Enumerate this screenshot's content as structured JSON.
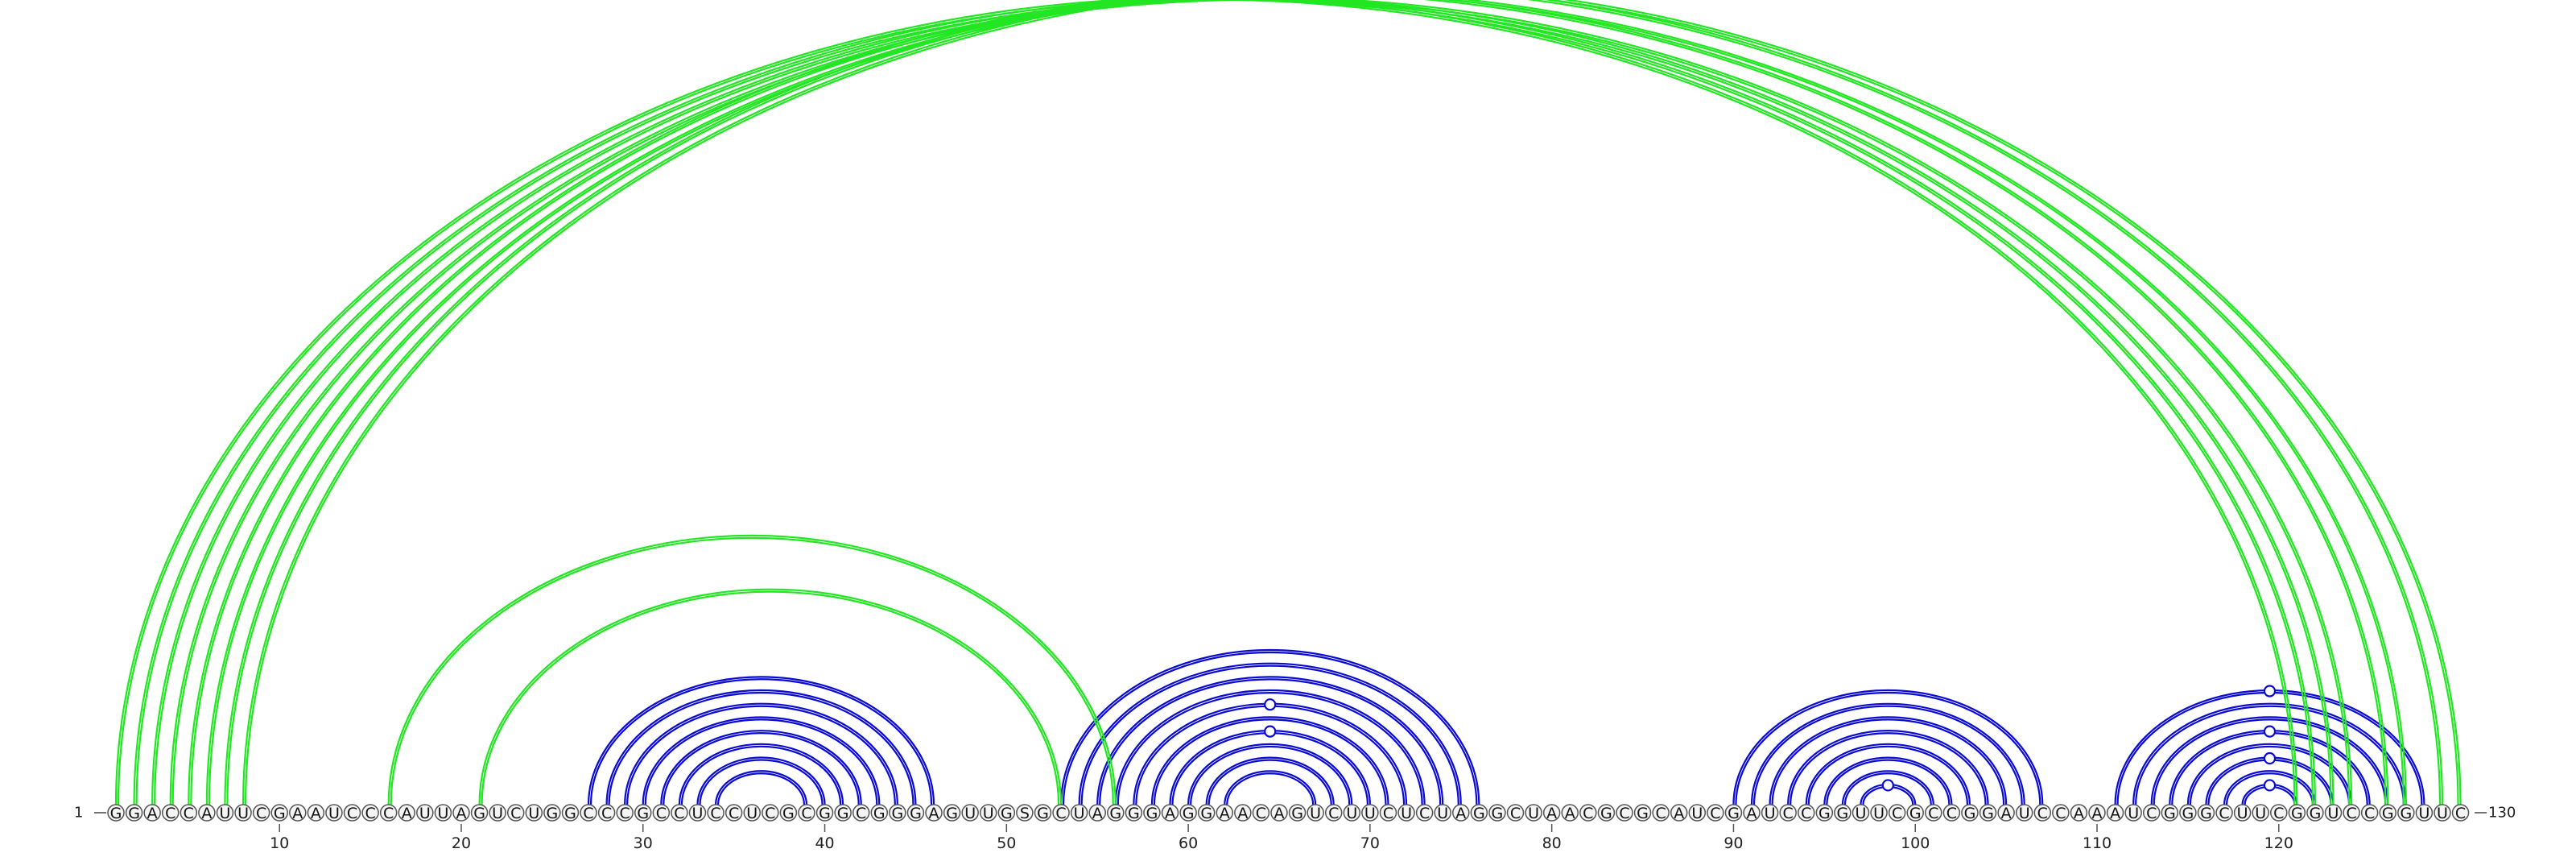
{
  "sequence": "GGACCAUUCGAAUCCCAUUAGUCUGGCCCGCCUCCUCGCGGCGGGAGUUGSGCUAGGGAGGAACAGUCUUCUCUAGGCUAACGCGCAUCGAUCCGGUUCGCCGGAUCCAAAUCGGGCUUCGGUCCGGUUC",
  "start_label": "1",
  "end_label": "130",
  "ticks": [
    {
      "pos": 10,
      "label": "10"
    },
    {
      "pos": 20,
      "label": "20"
    },
    {
      "pos": 30,
      "label": "30"
    },
    {
      "pos": 40,
      "label": "40"
    },
    {
      "pos": 50,
      "label": "50"
    },
    {
      "pos": 60,
      "label": "60"
    },
    {
      "pos": 70,
      "label": "70"
    },
    {
      "pos": 80,
      "label": "80"
    },
    {
      "pos": 90,
      "label": "90"
    },
    {
      "pos": 100,
      "label": "100"
    },
    {
      "pos": 110,
      "label": "110"
    },
    {
      "pos": 120,
      "label": "120"
    }
  ],
  "colors": {
    "helix": "#0a0ad2",
    "pseudoknot": "#22e622"
  },
  "helices": [
    {
      "kind": "helix",
      "pairs": [
        [
          27,
          46
        ],
        [
          28,
          45
        ],
        [
          29,
          44
        ],
        [
          30,
          43
        ],
        [
          31,
          42
        ],
        [
          32,
          41
        ],
        [
          33,
          40
        ],
        [
          34,
          39
        ]
      ]
    },
    {
      "kind": "helix",
      "pairs": [
        [
          53,
          76
        ],
        [
          54,
          75
        ],
        [
          55,
          74
        ],
        [
          56,
          73
        ],
        [
          57,
          72
        ],
        [
          58,
          71
        ],
        [
          59,
          70
        ],
        [
          60,
          69
        ],
        [
          61,
          68
        ],
        [
          62,
          67
        ]
      ],
      "marked": [
        [
          57,
          72
        ],
        [
          59,
          70
        ]
      ]
    },
    {
      "kind": "helix",
      "pairs": [
        [
          90,
          107
        ],
        [
          91,
          106
        ],
        [
          92,
          105
        ],
        [
          93,
          104
        ],
        [
          94,
          103
        ],
        [
          95,
          102
        ],
        [
          96,
          101
        ],
        [
          97,
          100
        ]
      ],
      "marked": [
        [
          97,
          100
        ]
      ]
    },
    {
      "kind": "helix",
      "pairs": [
        [
          111,
          128
        ],
        [
          112,
          127
        ],
        [
          113,
          126
        ],
        [
          114,
          125
        ],
        [
          115,
          124
        ],
        [
          116,
          123
        ],
        [
          117,
          122
        ],
        [
          118,
          121
        ]
      ],
      "marked": [
        [
          111,
          128
        ],
        [
          114,
          125
        ],
        [
          116,
          123
        ],
        [
          118,
          121
        ]
      ]
    },
    {
      "kind": "pseudoknot",
      "pairs": [
        [
          16,
          56
        ],
        [
          21,
          53
        ]
      ]
    },
    {
      "kind": "pseudoknot",
      "pairs": [
        [
          1,
          121
        ],
        [
          2,
          122
        ],
        [
          3,
          123
        ],
        [
          4,
          124
        ],
        [
          5,
          126
        ],
        [
          6,
          127
        ],
        [
          7,
          129
        ],
        [
          8,
          130
        ]
      ],
      "marked": [
        [
          2,
          129
        ]
      ]
    }
  ]
}
